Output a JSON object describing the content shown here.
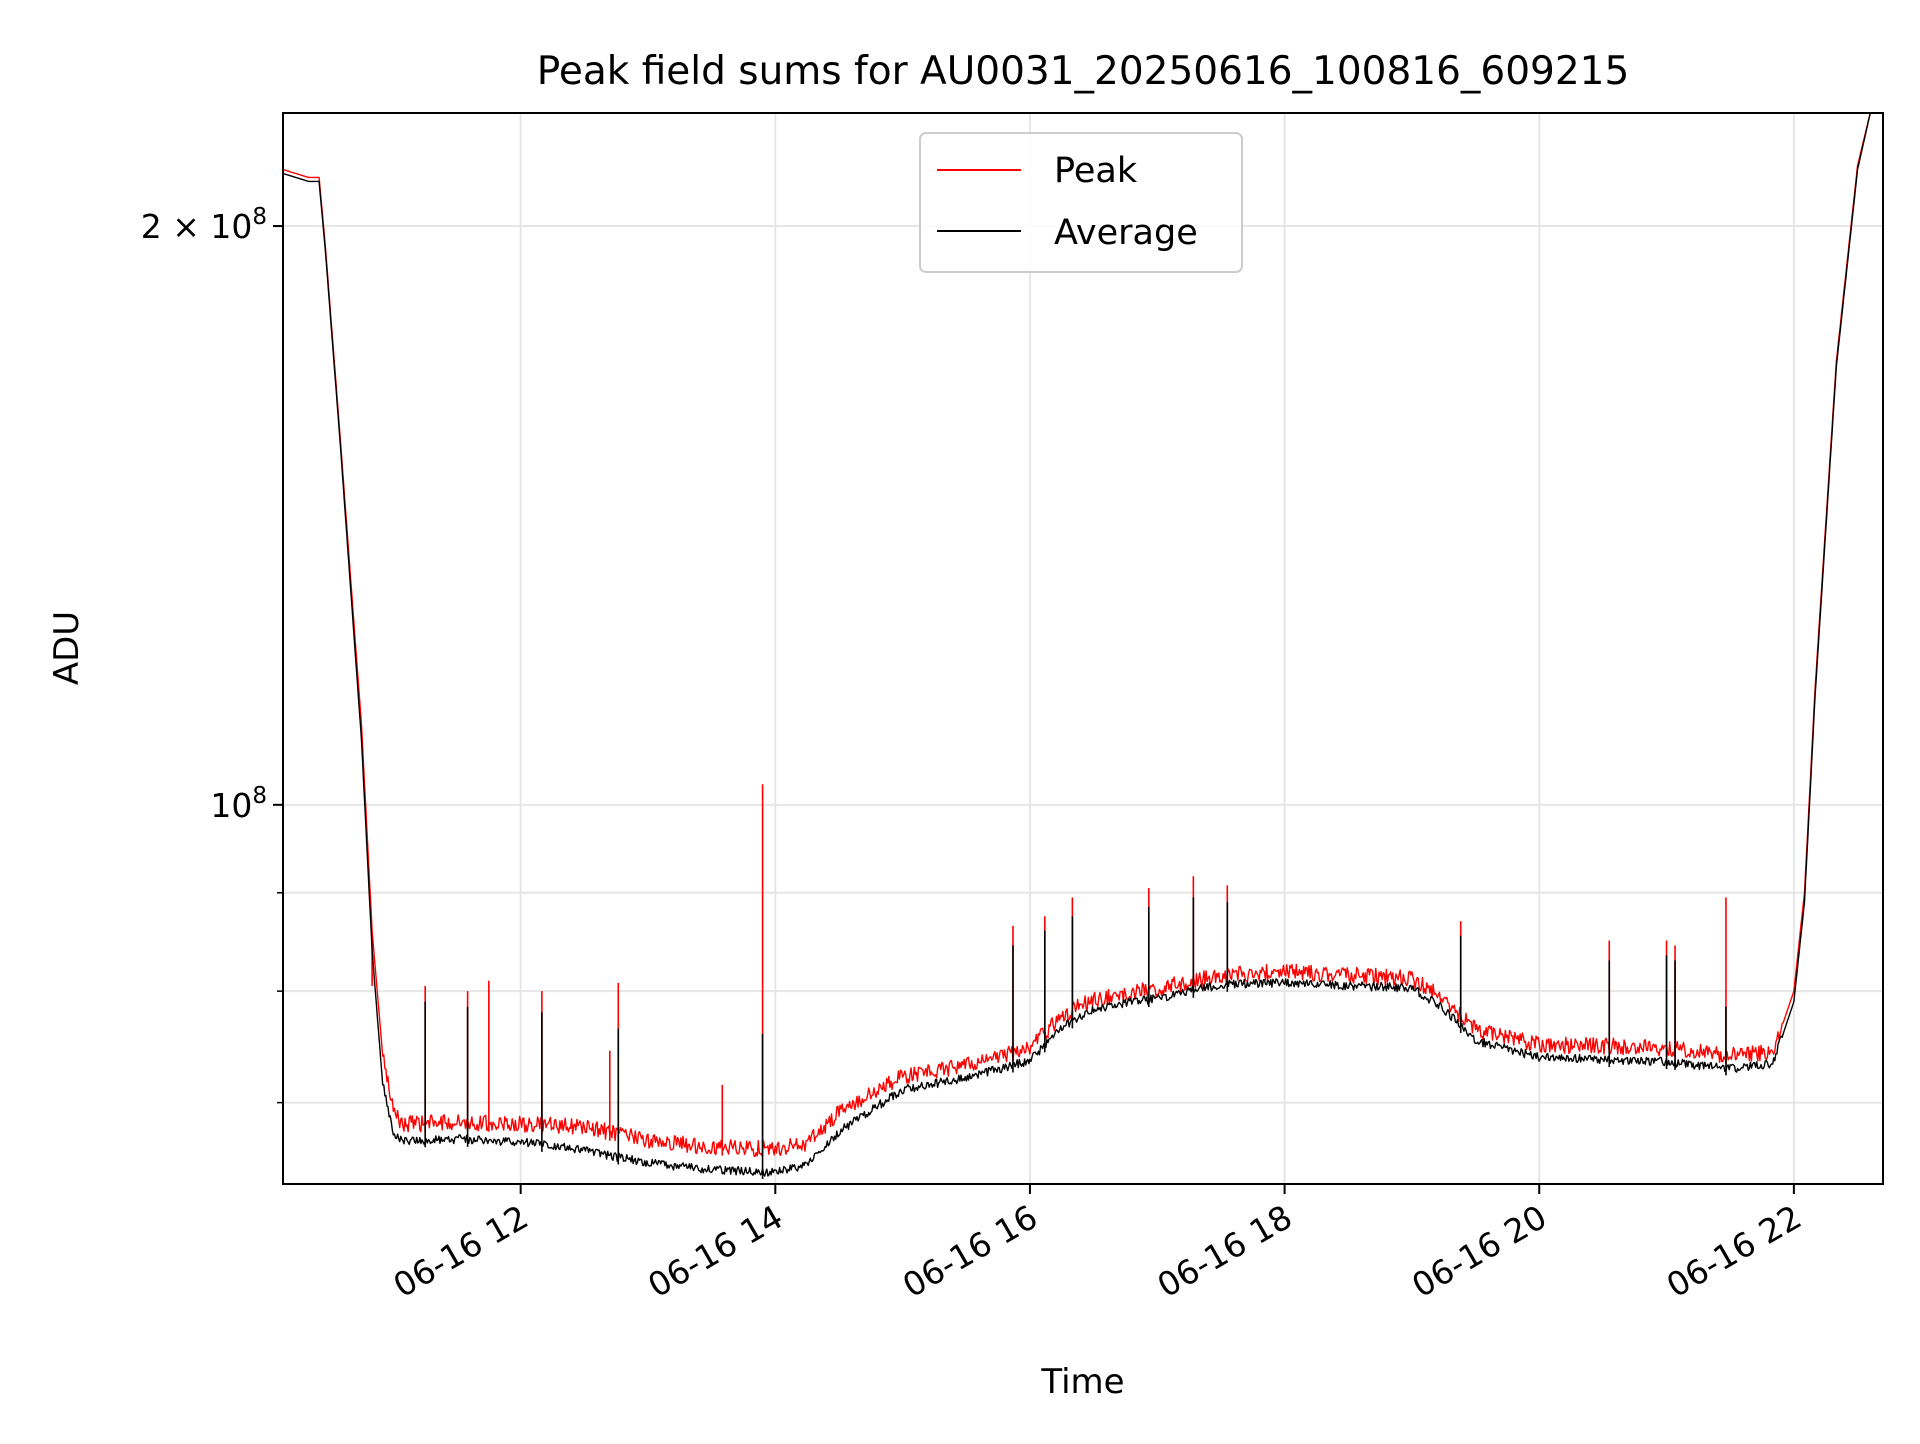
{
  "chart_data": {
    "type": "line",
    "title": "Peak field sums for AU0031_20250616_100816_609215",
    "xlabel": "Time",
    "ylabel": "ADU",
    "yscale": "log",
    "xlim": [
      "2025-06-16T10:08",
      "2025-06-16T22:42"
    ],
    "ylim": [
      63500000,
      229000000
    ],
    "xticks": [
      {
        "value": "2025-06-16T12:00",
        "label": "06-16 12"
      },
      {
        "value": "2025-06-16T14:00",
        "label": "06-16 14"
      },
      {
        "value": "2025-06-16T16:00",
        "label": "06-16 16"
      },
      {
        "value": "2025-06-16T18:00",
        "label": "06-16 18"
      },
      {
        "value": "2025-06-16T20:00",
        "label": "06-16 20"
      },
      {
        "value": "2025-06-16T22:00",
        "label": "06-16 22"
      }
    ],
    "yticks": [
      {
        "value": 200000000,
        "label_main": "2 × 10",
        "label_exp": "8"
      },
      {
        "value": 100000000,
        "label_main": "10",
        "label_exp": "8"
      }
    ],
    "yminor_ticks": [
      70000000,
      80000000,
      90000000
    ],
    "grid": true,
    "legend": "upper-center",
    "series": [
      {
        "name": "Peak",
        "color": "#ff0000",
        "points": [
          [
            "2025-06-16T10:08",
            214000000
          ],
          [
            "2025-06-16T10:20",
            212000000
          ],
          [
            "2025-06-16T10:25",
            212000000
          ],
          [
            "2025-06-16T10:28",
            195000000
          ],
          [
            "2025-06-16T10:35",
            155000000
          ],
          [
            "2025-06-16T10:45",
            110000000
          ],
          [
            "2025-06-16T10:50",
            86000000
          ],
          [
            "2025-06-16T10:55",
            74000000
          ],
          [
            "2025-06-16T11:00",
            69000000
          ],
          [
            "2025-06-16T11:05",
            68000000
          ],
          [
            "2025-06-16T11:30",
            68200000
          ],
          [
            "2025-06-16T12:00",
            68000000
          ],
          [
            "2025-06-16T12:30",
            67800000
          ],
          [
            "2025-06-16T13:00",
            66700000
          ],
          [
            "2025-06-16T13:30",
            66200000
          ],
          [
            "2025-06-16T14:00",
            66000000
          ],
          [
            "2025-06-16T14:15",
            66500000
          ],
          [
            "2025-06-16T14:30",
            69000000
          ],
          [
            "2025-06-16T15:00",
            72000000
          ],
          [
            "2025-06-16T15:30",
            73000000
          ],
          [
            "2025-06-16T16:00",
            74500000
          ],
          [
            "2025-06-16T16:15",
            77500000
          ],
          [
            "2025-06-16T16:30",
            79000000
          ],
          [
            "2025-06-16T17:00",
            80000000
          ],
          [
            "2025-06-16T17:30",
            81300000
          ],
          [
            "2025-06-16T18:00",
            81700000
          ],
          [
            "2025-06-16T18:30",
            81300000
          ],
          [
            "2025-06-16T19:00",
            81000000
          ],
          [
            "2025-06-16T19:15",
            79000000
          ],
          [
            "2025-06-16T19:30",
            76200000
          ],
          [
            "2025-06-16T20:00",
            74800000
          ],
          [
            "2025-06-16T20:30",
            74700000
          ],
          [
            "2025-06-16T21:00",
            74500000
          ],
          [
            "2025-06-16T21:30",
            73800000
          ],
          [
            "2025-06-16T21:50",
            74200000
          ],
          [
            "2025-06-16T22:00",
            80000000
          ],
          [
            "2025-06-16T22:05",
            90000000
          ],
          [
            "2025-06-16T22:10",
            115000000
          ],
          [
            "2025-06-16T22:20",
            170000000
          ],
          [
            "2025-06-16T22:30",
            215000000
          ],
          [
            "2025-06-16T22:36",
            229000000
          ]
        ],
        "spikes": [
          [
            "2025-06-16T10:50",
            80500000
          ],
          [
            "2025-06-16T11:15",
            80500000
          ],
          [
            "2025-06-16T11:35",
            80000000
          ],
          [
            "2025-06-16T11:45",
            81000000
          ],
          [
            "2025-06-16T12:10",
            80000000
          ],
          [
            "2025-06-16T12:42",
            74500000
          ],
          [
            "2025-06-16T12:46",
            80800000
          ],
          [
            "2025-06-16T13:35",
            71500000
          ],
          [
            "2025-06-16T13:54",
            102500000
          ],
          [
            "2025-06-16T15:52",
            86500000
          ],
          [
            "2025-06-16T16:07",
            87500000
          ],
          [
            "2025-06-16T16:20",
            89500000
          ],
          [
            "2025-06-16T16:56",
            90500000
          ],
          [
            "2025-06-16T17:17",
            91800000
          ],
          [
            "2025-06-16T17:33",
            90800000
          ],
          [
            "2025-06-16T19:23",
            87000000
          ],
          [
            "2025-06-16T20:33",
            85000000
          ],
          [
            "2025-06-16T20:60",
            85000000
          ],
          [
            "2025-06-16T21:04",
            84500000
          ],
          [
            "2025-06-16T21:28",
            89500000
          ]
        ]
      },
      {
        "name": "Average",
        "color": "#000000",
        "points": [
          [
            "2025-06-16T10:08",
            213000000
          ],
          [
            "2025-06-16T10:20",
            211000000
          ],
          [
            "2025-06-16T10:25",
            211000000
          ],
          [
            "2025-06-16T10:28",
            194000000
          ],
          [
            "2025-06-16T10:35",
            154000000
          ],
          [
            "2025-06-16T10:45",
            108000000
          ],
          [
            "2025-06-16T10:50",
            84000000
          ],
          [
            "2025-06-16T10:55",
            71500000
          ],
          [
            "2025-06-16T11:00",
            67200000
          ],
          [
            "2025-06-16T11:05",
            66800000
          ],
          [
            "2025-06-16T11:30",
            66900000
          ],
          [
            "2025-06-16T12:00",
            66700000
          ],
          [
            "2025-06-16T12:30",
            66000000
          ],
          [
            "2025-06-16T13:00",
            65000000
          ],
          [
            "2025-06-16T13:30",
            64500000
          ],
          [
            "2025-06-16T14:00",
            64300000
          ],
          [
            "2025-06-16T14:15",
            64800000
          ],
          [
            "2025-06-16T14:30",
            67500000
          ],
          [
            "2025-06-16T15:00",
            71000000
          ],
          [
            "2025-06-16T15:30",
            72000000
          ],
          [
            "2025-06-16T16:00",
            73500000
          ],
          [
            "2025-06-16T16:15",
            76500000
          ],
          [
            "2025-06-16T16:30",
            78200000
          ],
          [
            "2025-06-16T17:00",
            79200000
          ],
          [
            "2025-06-16T17:30",
            80500000
          ],
          [
            "2025-06-16T18:00",
            80700000
          ],
          [
            "2025-06-16T18:30",
            80400000
          ],
          [
            "2025-06-16T19:00",
            80200000
          ],
          [
            "2025-06-16T19:15",
            78200000
          ],
          [
            "2025-06-16T19:30",
            75300000
          ],
          [
            "2025-06-16T20:00",
            73800000
          ],
          [
            "2025-06-16T20:30",
            73600000
          ],
          [
            "2025-06-16T21:00",
            73400000
          ],
          [
            "2025-06-16T21:30",
            72800000
          ],
          [
            "2025-06-16T21:50",
            73200000
          ],
          [
            "2025-06-16T22:00",
            79000000
          ],
          [
            "2025-06-16T22:05",
            89000000
          ],
          [
            "2025-06-16T22:10",
            114000000
          ],
          [
            "2025-06-16T22:20",
            169000000
          ],
          [
            "2025-06-16T22:30",
            214000000
          ],
          [
            "2025-06-16T22:36",
            229000000
          ]
        ],
        "spikes": [
          [
            "2025-06-16T11:15",
            79000000
          ],
          [
            "2025-06-16T11:35",
            78500000
          ],
          [
            "2025-06-16T12:10",
            78000000
          ],
          [
            "2025-06-16T12:46",
            76500000
          ],
          [
            "2025-06-16T13:54",
            76000000
          ],
          [
            "2025-06-16T15:52",
            84500000
          ],
          [
            "2025-06-16T16:07",
            86000000
          ],
          [
            "2025-06-16T16:20",
            87500000
          ],
          [
            "2025-06-16T16:56",
            88500000
          ],
          [
            "2025-06-16T17:17",
            89500000
          ],
          [
            "2025-06-16T17:33",
            89000000
          ],
          [
            "2025-06-16T19:23",
            85500000
          ],
          [
            "2025-06-16T20:33",
            83000000
          ],
          [
            "2025-06-16T20:60",
            83500000
          ],
          [
            "2025-06-16T21:04",
            83000000
          ],
          [
            "2025-06-16T21:28",
            78500000
          ]
        ]
      }
    ]
  }
}
